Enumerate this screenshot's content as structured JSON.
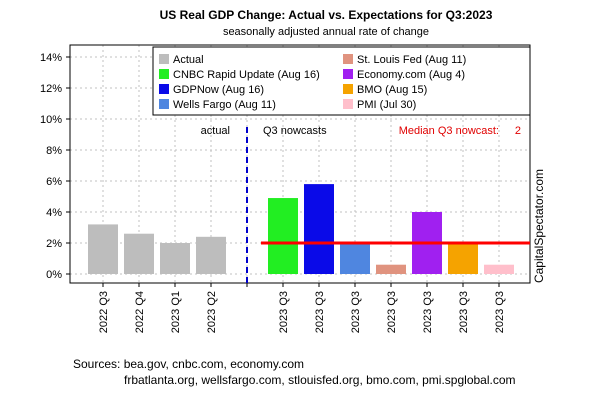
{
  "chart_data": {
    "type": "bar",
    "title": "US Real GDP Change: Actual vs. Expectations for Q3:2023",
    "subtitle": "seasonally adjusted annual rate of change",
    "ylim": [
      0,
      14
    ],
    "y_ticks": [
      "0%",
      "2%",
      "4%",
      "6%",
      "8%",
      "10%",
      "12%",
      "14%"
    ],
    "y_tick_values": [
      0,
      2,
      4,
      6,
      8,
      10,
      12,
      14
    ],
    "grid": true,
    "legend_position": "top-right",
    "categories": [
      "2022 Q3",
      "2022 Q4",
      "2023 Q1",
      "2023 Q2",
      "",
      "2023 Q3",
      "2023 Q3",
      "2023 Q3",
      "2023 Q3",
      "2023 Q3",
      "2023 Q3",
      "2023 Q3"
    ],
    "series": [
      {
        "name": "Actual",
        "color": "#bdbdbd",
        "values": [
          3.2,
          2.6,
          2.0,
          2.4,
          null,
          null,
          null,
          null,
          null,
          null,
          null,
          null
        ]
      },
      {
        "name": "CNBC Rapid Update (Aug 16)",
        "color": "#22ee22",
        "values": [
          null,
          null,
          null,
          null,
          null,
          4.9,
          null,
          null,
          null,
          null,
          null,
          null
        ]
      },
      {
        "name": "GDPNow (Aug 16)",
        "color": "#0a0ae8",
        "values": [
          null,
          null,
          null,
          null,
          null,
          null,
          5.8,
          null,
          null,
          null,
          null,
          null
        ]
      },
      {
        "name": "Wells Fargo (Aug 11)",
        "color": "#4f86e0",
        "values": [
          null,
          null,
          null,
          null,
          null,
          null,
          null,
          2.0,
          null,
          null,
          null,
          null
        ]
      },
      {
        "name": "St. Louis Fed (Aug 11)",
        "color": "#e0937f",
        "values": [
          null,
          null,
          null,
          null,
          null,
          null,
          null,
          null,
          0.6,
          null,
          null,
          null
        ]
      },
      {
        "name": "Economy.com (Aug 4)",
        "color": "#a020f0",
        "values": [
          null,
          null,
          null,
          null,
          null,
          null,
          null,
          null,
          null,
          4.0,
          null,
          null
        ]
      },
      {
        "name": "BMO (Aug 15)",
        "color": "#f5a300",
        "values": [
          null,
          null,
          null,
          null,
          null,
          null,
          null,
          null,
          null,
          null,
          2.0,
          null
        ]
      },
      {
        "name": "PMI (Jul 30)",
        "color": "#ffbfcb",
        "values": [
          null,
          null,
          null,
          null,
          null,
          null,
          null,
          null,
          null,
          null,
          null,
          0.6
        ]
      }
    ],
    "median_nowcast": {
      "value": 2.0,
      "color": "#ff0000",
      "label": "Median Q3 nowcast:",
      "value_label": "2"
    },
    "annotations": {
      "left": "actual",
      "right": "Q3 nowcasts"
    },
    "divider_color": "#0000cc",
    "side_label": "CapitalSpectator.com",
    "sources": [
      "Sources: bea.gov, cnbc.com, economy.com",
      "frbatlanta.org, wellsfargo.com, stlouisfed.org, bmo.com, pmi.spglobal.com"
    ]
  }
}
